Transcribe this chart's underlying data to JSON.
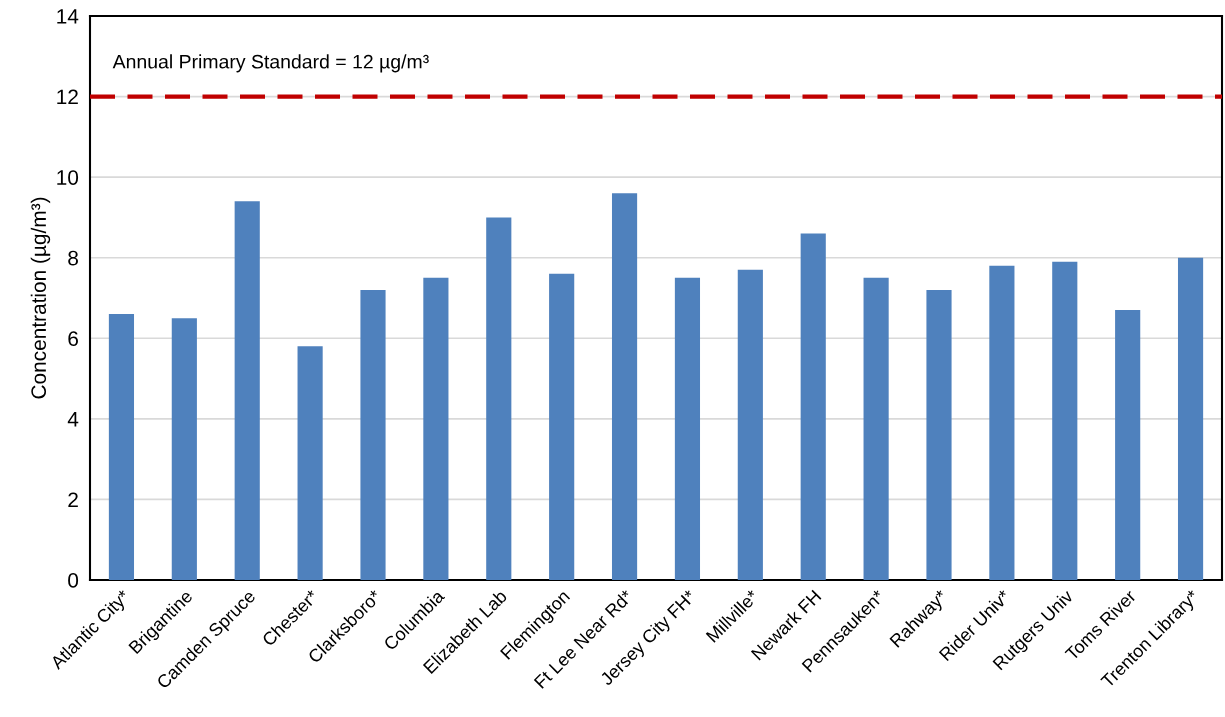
{
  "chart_data": {
    "type": "bar",
    "ylabel": "Concentration (µg/m³)",
    "categories": [
      "Atlantic City*",
      "Brigantine",
      "Camden Spruce",
      "Chester*",
      "Clarksboro*",
      "Columbia",
      "Elizabeth Lab",
      "Flemington",
      "Ft Lee Near Rd*",
      "Jersey City FH*",
      "Millville*",
      "Newark FH",
      "Pennsauken*",
      "Rahway*",
      "Rider Univ*",
      "Rutgers Univ",
      "Toms River",
      "Trenton Library*"
    ],
    "values": [
      6.6,
      6.5,
      9.4,
      5.8,
      7.2,
      7.5,
      9.0,
      7.6,
      9.6,
      7.5,
      7.7,
      8.6,
      7.5,
      7.2,
      7.8,
      7.9,
      6.7,
      8.0
    ],
    "color": "#4f81bd",
    "ylim": [
      0,
      14
    ],
    "yticks": [
      0,
      2,
      4,
      6,
      8,
      10,
      12,
      14
    ],
    "grid": "y",
    "ref_lines": [
      {
        "axis": "y",
        "value": 12,
        "label": "Annual Primary Standard = 12 µg/m³",
        "color": "#c00000",
        "line_style": "dashed"
      }
    ]
  }
}
